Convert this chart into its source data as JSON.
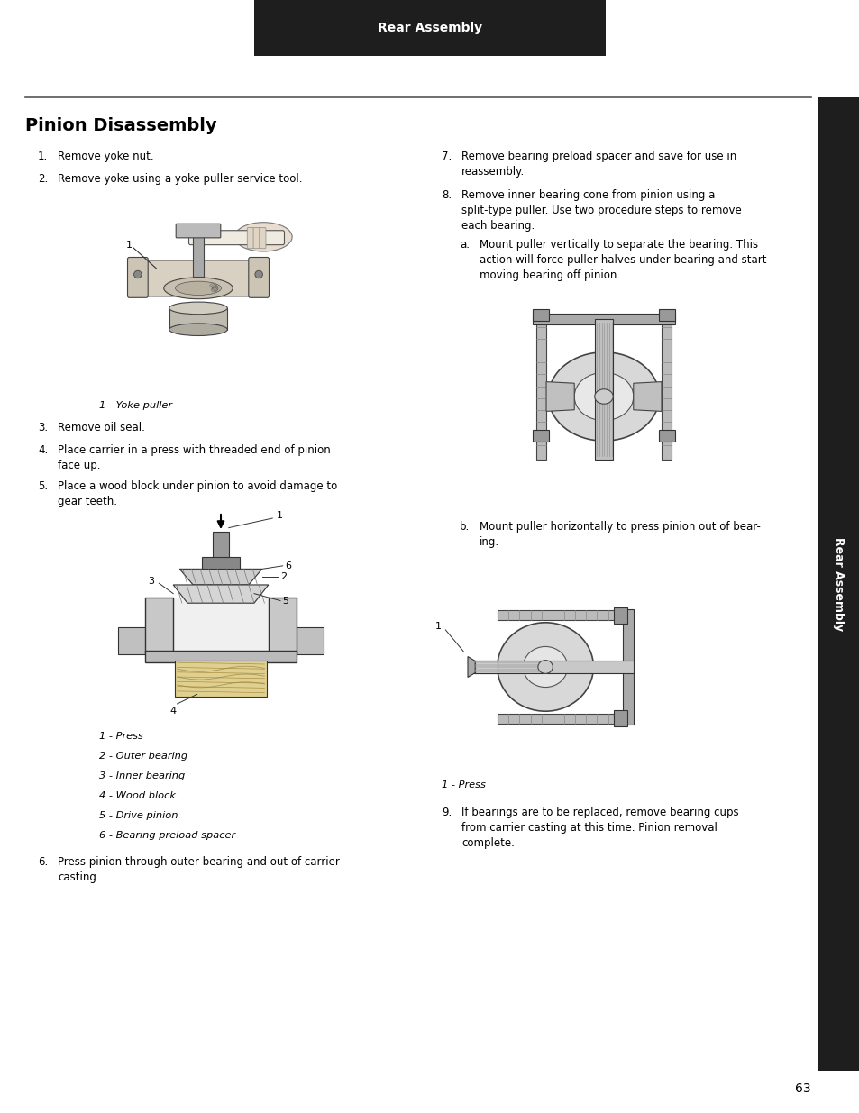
{
  "page_bg": "#ffffff",
  "header_bg": "#1e1e1e",
  "header_text": "Rear Assembly",
  "header_text_color": "#ffffff",
  "sidebar_bg": "#1e1e1e",
  "sidebar_text": "Rear Assembly",
  "sidebar_text_color": "#ffffff",
  "title": "Pinion Disassembly",
  "page_number": "63",
  "body_fontsize": 8.5,
  "caption_fontsize": 8.2,
  "title_fontsize": 14
}
